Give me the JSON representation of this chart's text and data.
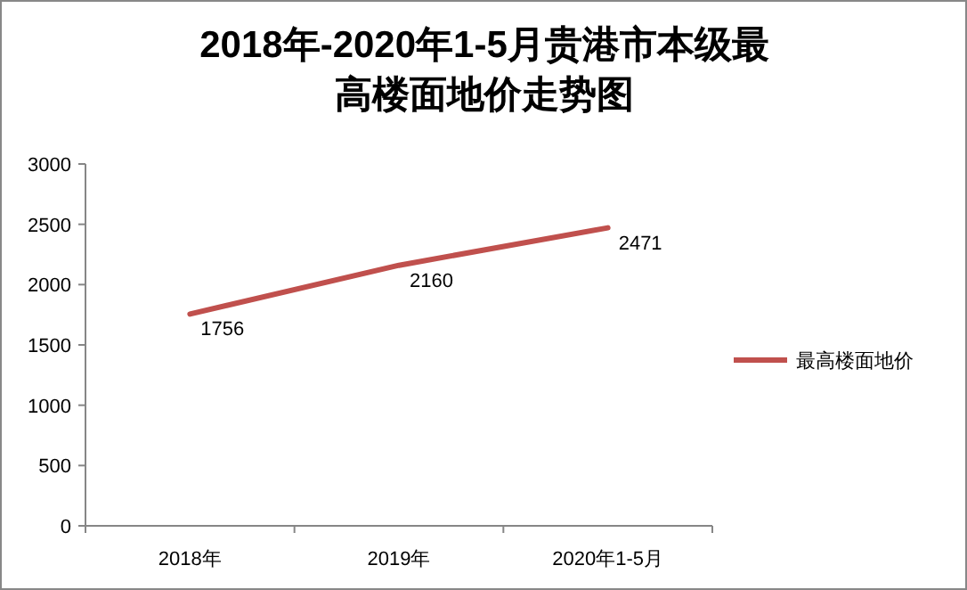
{
  "chart_data": {
    "type": "line",
    "title": "2018年-2020年1-5月贵港市本级最高楼面地价走势图",
    "categories": [
      "2018年",
      "2019年",
      "2020年1-5月"
    ],
    "series": [
      {
        "name": "最高楼面地价",
        "color": "#c0504d",
        "values": [
          1756,
          2160,
          2471
        ]
      }
    ],
    "ylim": [
      0,
      3000
    ],
    "yticks": [
      0,
      500,
      1000,
      1500,
      2000,
      2500,
      3000
    ],
    "data_labels": true,
    "legend": "right",
    "grid": false,
    "marker": "none",
    "line_style": "solid"
  }
}
